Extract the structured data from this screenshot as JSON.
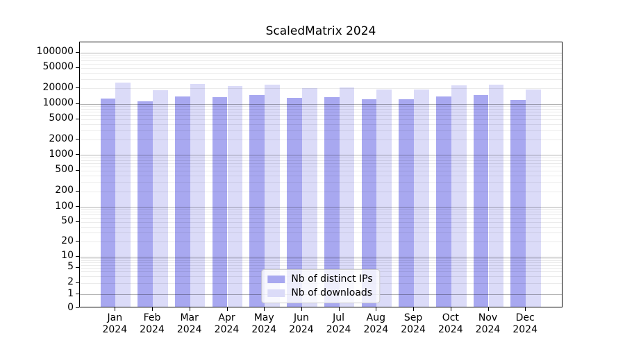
{
  "title": "ScaledMatrix 2024",
  "chart_data": {
    "type": "bar",
    "title": "ScaledMatrix 2024",
    "categories": [
      "Jan",
      "Feb",
      "Mar",
      "Apr",
      "May",
      "Jun",
      "Jul",
      "Aug",
      "Sep",
      "Oct",
      "Nov",
      "Dec"
    ],
    "year_label": "2024",
    "series": [
      {
        "name": "Nb of distinct IPs",
        "color": "#a8a8f0",
        "values": [
          11900,
          10400,
          13100,
          12700,
          13700,
          12200,
          12700,
          11500,
          11600,
          12900,
          13700,
          11200
        ]
      },
      {
        "name": "Nb of downloads",
        "color": "#dbdbf8",
        "values": [
          24600,
          17500,
          22600,
          21000,
          22000,
          19200,
          19800,
          17900,
          18000,
          21400,
          22500,
          17700
        ]
      }
    ],
    "y_axis": {
      "scale": "symlog",
      "tick_values": [
        100000,
        50000,
        20000,
        10000,
        5000,
        2000,
        1000,
        500,
        200,
        100,
        50,
        20,
        10,
        5,
        2,
        1,
        0
      ],
      "tick_labels": [
        "100000",
        "50000",
        "20000",
        "10000",
        "5000",
        "2000",
        "1000",
        "500",
        "200",
        "100",
        "50",
        "20",
        "10",
        "5",
        "2",
        "1",
        "0"
      ],
      "major_gridline_values": [
        1,
        10,
        100,
        1000,
        10000,
        100000
      ],
      "range": [
        0,
        100000
      ],
      "grid": true
    },
    "x_axis": {
      "label_line2": "2024"
    },
    "legend": {
      "position": "lower center",
      "entries": [
        "Nb of distinct IPs",
        "Nb of downloads"
      ]
    }
  },
  "colors": {
    "background": "#ffffff",
    "bar_distinct_ips": "#a8a8f0",
    "bar_downloads": "#dbdbf8",
    "major_grid": "rgba(0,0,0,0.30)",
    "minor_grid": "rgba(0,0,0,0.08)",
    "spine": "#000000",
    "text": "#000000",
    "legend_border": "#cccccc"
  }
}
